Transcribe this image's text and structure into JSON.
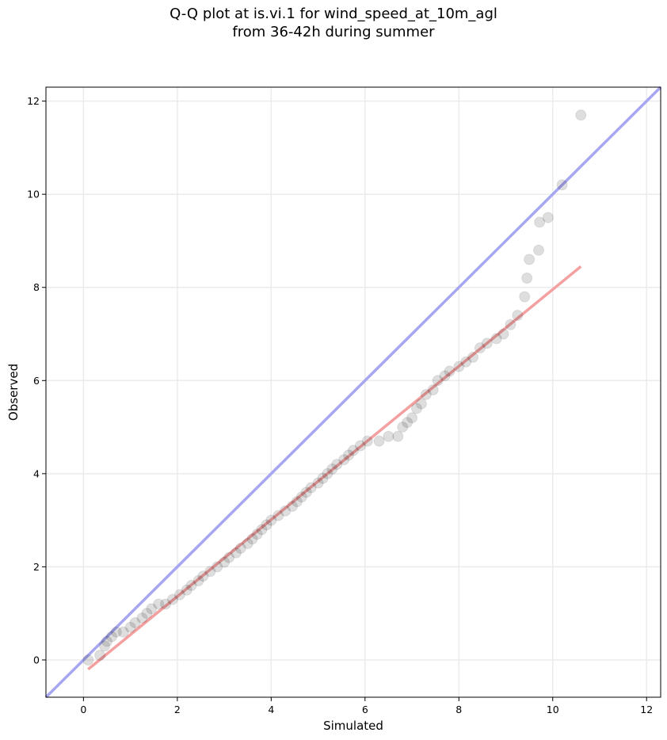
{
  "chart_data": {
    "type": "scatter",
    "title_line1": "Q-Q plot at is.vi.1 for wind_speed_at_10m_agl",
    "title_line2": "from 36-42h during summer",
    "xlabel": "Simulated",
    "ylabel": "Observed",
    "xlim": [
      -0.8,
      12.3
    ],
    "ylim": [
      -0.8,
      12.3
    ],
    "xticks": [
      0,
      2,
      4,
      6,
      8,
      10,
      12
    ],
    "yticks": [
      0,
      2,
      4,
      6,
      8,
      10,
      12
    ],
    "grid": true,
    "reference_line": {
      "from": [
        -0.8,
        -0.8
      ],
      "to": [
        12.3,
        12.3
      ],
      "color": "#a6a6f2"
    },
    "fit_line": {
      "from": [
        0.1,
        -0.2
      ],
      "to": [
        10.6,
        8.45
      ],
      "color": "#f4a0a0"
    },
    "points": [
      [
        0.1,
        0.0
      ],
      [
        0.35,
        0.1
      ],
      [
        0.45,
        0.3
      ],
      [
        0.5,
        0.4
      ],
      [
        0.6,
        0.5
      ],
      [
        0.7,
        0.6
      ],
      [
        0.85,
        0.6
      ],
      [
        1.0,
        0.7
      ],
      [
        1.1,
        0.8
      ],
      [
        1.25,
        0.9
      ],
      [
        1.35,
        1.0
      ],
      [
        1.45,
        1.1
      ],
      [
        1.6,
        1.2
      ],
      [
        1.75,
        1.2
      ],
      [
        1.9,
        1.3
      ],
      [
        2.05,
        1.4
      ],
      [
        2.2,
        1.5
      ],
      [
        2.3,
        1.6
      ],
      [
        2.45,
        1.7
      ],
      [
        2.55,
        1.8
      ],
      [
        2.7,
        1.9
      ],
      [
        2.85,
        2.0
      ],
      [
        3.0,
        2.1
      ],
      [
        3.1,
        2.2
      ],
      [
        3.25,
        2.3
      ],
      [
        3.35,
        2.4
      ],
      [
        3.5,
        2.5
      ],
      [
        3.6,
        2.6
      ],
      [
        3.7,
        2.7
      ],
      [
        3.8,
        2.8
      ],
      [
        3.9,
        2.9
      ],
      [
        4.0,
        3.0
      ],
      [
        4.15,
        3.1
      ],
      [
        4.3,
        3.2
      ],
      [
        4.45,
        3.3
      ],
      [
        4.55,
        3.4
      ],
      [
        4.65,
        3.5
      ],
      [
        4.75,
        3.6
      ],
      [
        4.85,
        3.7
      ],
      [
        5.0,
        3.8
      ],
      [
        5.1,
        3.9
      ],
      [
        5.2,
        4.0
      ],
      [
        5.3,
        4.1
      ],
      [
        5.4,
        4.2
      ],
      [
        5.55,
        4.3
      ],
      [
        5.65,
        4.4
      ],
      [
        5.75,
        4.5
      ],
      [
        5.9,
        4.6
      ],
      [
        6.05,
        4.7
      ],
      [
        6.3,
        4.7
      ],
      [
        6.5,
        4.8
      ],
      [
        6.7,
        4.8
      ],
      [
        6.8,
        5.0
      ],
      [
        6.9,
        5.1
      ],
      [
        7.0,
        5.2
      ],
      [
        7.1,
        5.4
      ],
      [
        7.2,
        5.5
      ],
      [
        7.3,
        5.7
      ],
      [
        7.45,
        5.8
      ],
      [
        7.55,
        6.0
      ],
      [
        7.7,
        6.1
      ],
      [
        7.8,
        6.2
      ],
      [
        8.0,
        6.3
      ],
      [
        8.15,
        6.4
      ],
      [
        8.3,
        6.5
      ],
      [
        8.45,
        6.7
      ],
      [
        8.6,
        6.8
      ],
      [
        8.8,
        6.9
      ],
      [
        8.95,
        7.0
      ],
      [
        9.1,
        7.2
      ],
      [
        9.25,
        7.4
      ],
      [
        9.4,
        7.8
      ],
      [
        9.45,
        8.2
      ],
      [
        9.5,
        8.6
      ],
      [
        9.7,
        8.8
      ],
      [
        9.72,
        9.4
      ],
      [
        9.9,
        9.5
      ],
      [
        10.2,
        10.2
      ],
      [
        10.6,
        11.7
      ]
    ]
  }
}
